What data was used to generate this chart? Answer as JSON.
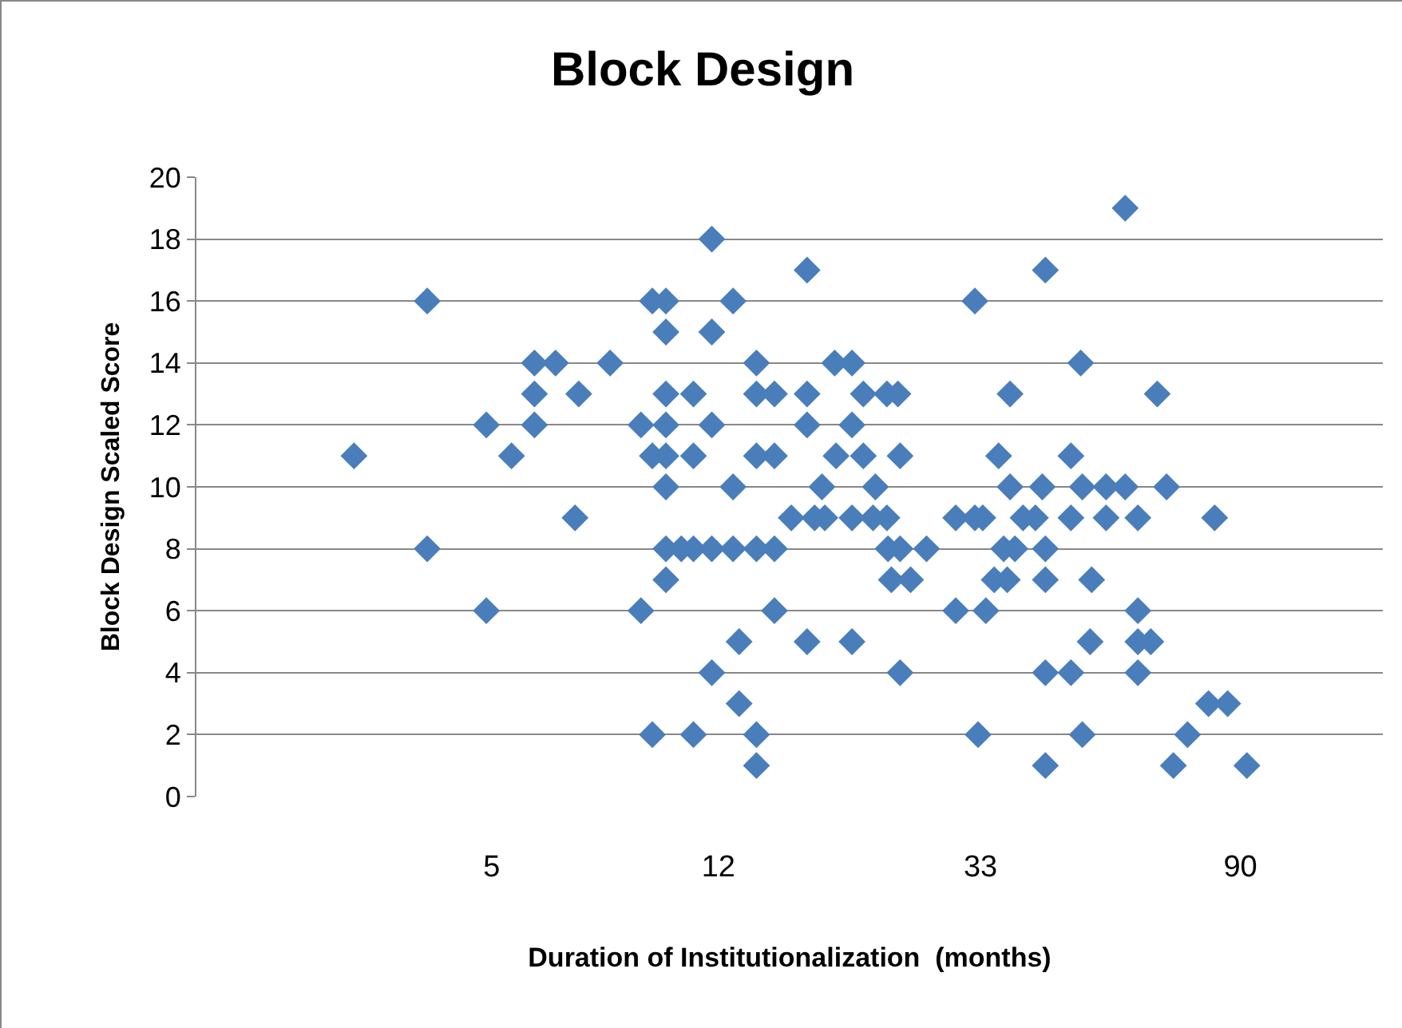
{
  "chart_data": {
    "type": "scatter",
    "title": "Block Design",
    "xlabel": "Duration of Institutionalization  (months)",
    "ylabel": "Block Design Scaled Score",
    "log": "x",
    "grid": "y",
    "marker": "diamond",
    "xlim": [
      1.6,
      156
    ],
    "xticks": [
      5,
      12,
      33,
      90
    ],
    "ylim": [
      0,
      20
    ],
    "yticks": [
      0,
      2,
      4,
      6,
      8,
      10,
      12,
      14,
      16,
      18,
      20
    ],
    "series": [
      {
        "color": "#4a7ebb",
        "x": [
          2.94,
          3.9,
          3.9,
          4.9,
          4.9,
          5.4,
          5.9,
          5.9,
          5.9,
          6.4,
          6.9,
          7.0,
          7.9,
          8.9,
          8.9,
          9.3,
          9.3,
          9.3,
          9.8,
          9.8,
          9.8,
          9.8,
          9.8,
          9.8,
          9.8,
          9.8,
          10.4,
          10.9,
          10.9,
          10.9,
          10.9,
          11.7,
          11.7,
          11.7,
          11.7,
          11.7,
          12.7,
          12.7,
          12.7,
          13.0,
          13.0,
          13.9,
          13.9,
          13.9,
          13.9,
          13.9,
          13.9,
          14.9,
          14.9,
          14.9,
          14.9,
          15.9,
          16.9,
          16.9,
          16.9,
          16.9,
          17.4,
          17.9,
          18.1,
          18.8,
          18.9,
          20.1,
          20.1,
          20.1,
          20.1,
          21.0,
          21.0,
          21.8,
          22.0,
          23.0,
          23.0,
          23.1,
          23.4,
          24.0,
          24.2,
          24.2,
          24.2,
          25.2,
          26.8,
          30.0,
          30.0,
          32.3,
          32.3,
          32.7,
          33.3,
          33.7,
          34.8,
          35.4,
          36.1,
          36.6,
          37.0,
          37.0,
          37.7,
          38.9,
          40.8,
          41.9,
          42.4,
          42.4,
          42.4,
          42.4,
          42.4,
          46.8,
          46.8,
          46.8,
          48.6,
          48.9,
          48.9,
          50.4,
          50.7,
          53.6,
          53.6,
          57.7,
          57.7,
          60.6,
          60.6,
          60.6,
          60.6,
          63.7,
          65.3,
          67.7,
          69.5,
          73.4,
          79.6,
          81.5,
          85.7,
          92.3
        ],
        "values": [
          11,
          16,
          8,
          12,
          6,
          11,
          14,
          13,
          12,
          14,
          9,
          13,
          14,
          12,
          6,
          16,
          11,
          2,
          16,
          15,
          13,
          12,
          11,
          10,
          8,
          7,
          8,
          13,
          11,
          8,
          2,
          18,
          15,
          12,
          4,
          8,
          16,
          10,
          8,
          5,
          3,
          14,
          13,
          11,
          8,
          2,
          1,
          13,
          11,
          8,
          6,
          9,
          17,
          13,
          12,
          5,
          9,
          10,
          9,
          14,
          11,
          14,
          12,
          9,
          5,
          13,
          11,
          9,
          10,
          13,
          9,
          8,
          7,
          13,
          11,
          8,
          4,
          7,
          8,
          9,
          6,
          16,
          9,
          2,
          9,
          6,
          7,
          11,
          8,
          7,
          10,
          13,
          8,
          9,
          9,
          10,
          17,
          8,
          7,
          4,
          1,
          11,
          9,
          4,
          14,
          10,
          2,
          5,
          7,
          10,
          9,
          19,
          10,
          9,
          6,
          5,
          4,
          5,
          13,
          10,
          1,
          2,
          3,
          9,
          3,
          1
        ]
      }
    ]
  }
}
